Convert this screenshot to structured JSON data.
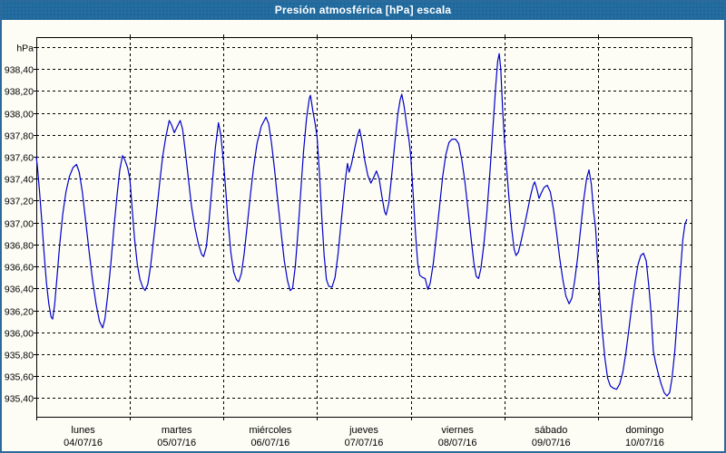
{
  "window": {
    "title": "Presión atmosférica [hPa] escala",
    "title_bar_color": "#20699d",
    "border_color": "#2b6b9b",
    "background_color": "#fdfdf6"
  },
  "chart_data": {
    "type": "line",
    "title": "Presión atmosférica [hPa] escala",
    "ylabel": "hPa",
    "unit_label": "hPa",
    "grid": "dashed",
    "legend": "none",
    "line_color": "#0000c8",
    "grid_color": "#000000",
    "ylim": [
      935.23,
      938.69
    ],
    "x_total_hours": 168,
    "y_gridline_values": [
      938.6,
      938.4,
      938.2,
      938.0,
      937.8,
      937.6,
      937.4,
      937.2,
      937.0,
      936.8,
      936.6,
      936.4,
      936.2,
      936.0,
      935.8,
      935.6,
      935.4
    ],
    "y_gridline_labels": [
      "hPa",
      "938,40",
      "938,20",
      "938,00",
      "937,80",
      "937,60",
      "937,40",
      "937,20",
      "937,00",
      "936,80",
      "936,60",
      "936,40",
      "936,20",
      "936,00",
      "935,80",
      "935,60",
      "935,40"
    ],
    "days": [
      {
        "name": "lunes",
        "date": "04/07/16"
      },
      {
        "name": "martes",
        "date": "05/07/16"
      },
      {
        "name": "miércoles",
        "date": "06/07/16"
      },
      {
        "name": "jueves",
        "date": "07/07/16"
      },
      {
        "name": "viernes",
        "date": "08/07/16"
      },
      {
        "name": "sábado",
        "date": "09/07/16"
      },
      {
        "name": "domingo",
        "date": "10/07/16"
      }
    ],
    "series": [
      {
        "name": "Presión atmosférica [hPa]",
        "color": "#0000c8",
        "points": [
          [
            0,
            937.6
          ],
          [
            0.3,
            937.5
          ],
          [
            0.8,
            937.3
          ],
          [
            1.4,
            937.02
          ],
          [
            2,
            936.72
          ],
          [
            2.6,
            936.45
          ],
          [
            3.2,
            936.26
          ],
          [
            3.8,
            936.14
          ],
          [
            4.2,
            936.12
          ],
          [
            4.7,
            936.25
          ],
          [
            5.3,
            936.5
          ],
          [
            6,
            936.8
          ],
          [
            6.8,
            937.08
          ],
          [
            7.6,
            937.28
          ],
          [
            8.5,
            937.42
          ],
          [
            9.4,
            937.5
          ],
          [
            10.3,
            937.53
          ],
          [
            11,
            937.46
          ],
          [
            11.8,
            937.28
          ],
          [
            12.6,
            937.03
          ],
          [
            13.5,
            936.75
          ],
          [
            14.4,
            936.48
          ],
          [
            15.3,
            936.26
          ],
          [
            16.2,
            936.1
          ],
          [
            17,
            936.04
          ],
          [
            17.6,
            936.12
          ],
          [
            18.3,
            936.33
          ],
          [
            19.1,
            936.62
          ],
          [
            19.9,
            936.95
          ],
          [
            20.7,
            937.25
          ],
          [
            21.4,
            937.48
          ],
          [
            22.1,
            937.61
          ],
          [
            22.7,
            937.57
          ],
          [
            23.4,
            937.5
          ],
          [
            24,
            937.4
          ],
          [
            24.6,
            937.12
          ],
          [
            25.2,
            936.85
          ],
          [
            25.9,
            936.62
          ],
          [
            26.6,
            936.48
          ],
          [
            27.3,
            936.41
          ],
          [
            27.9,
            936.38
          ],
          [
            28.6,
            936.44
          ],
          [
            29.3,
            936.6
          ],
          [
            30,
            936.82
          ],
          [
            30.8,
            937.08
          ],
          [
            31.6,
            937.35
          ],
          [
            32.4,
            937.6
          ],
          [
            33.2,
            937.78
          ],
          [
            34.1,
            937.93
          ],
          [
            34.7,
            937.89
          ],
          [
            35.4,
            937.82
          ],
          [
            36.2,
            937.88
          ],
          [
            36.9,
            937.93
          ],
          [
            37.5,
            937.85
          ],
          [
            38.2,
            937.65
          ],
          [
            39,
            937.4
          ],
          [
            39.8,
            937.15
          ],
          [
            40.7,
            936.95
          ],
          [
            41.6,
            936.8
          ],
          [
            42.4,
            936.71
          ],
          [
            42.9,
            936.69
          ],
          [
            43.6,
            936.78
          ],
          [
            44.3,
            937.02
          ],
          [
            45.1,
            937.35
          ],
          [
            45.9,
            937.68
          ],
          [
            46.7,
            937.91
          ],
          [
            47.3,
            937.8
          ],
          [
            48,
            937.55
          ],
          [
            48.6,
            937.28
          ],
          [
            49.2,
            937
          ],
          [
            49.9,
            936.72
          ],
          [
            50.6,
            936.55
          ],
          [
            51.3,
            936.48
          ],
          [
            51.9,
            936.46
          ],
          [
            52.6,
            936.54
          ],
          [
            53.3,
            936.72
          ],
          [
            54.1,
            936.98
          ],
          [
            54.9,
            937.25
          ],
          [
            55.7,
            937.5
          ],
          [
            56.6,
            937.72
          ],
          [
            57.7,
            937.88
          ],
          [
            58.9,
            937.96
          ],
          [
            59.6,
            937.9
          ],
          [
            60.3,
            937.73
          ],
          [
            61.1,
            937.48
          ],
          [
            61.9,
            937.2
          ],
          [
            62.8,
            936.9
          ],
          [
            63.6,
            936.65
          ],
          [
            64.4,
            936.47
          ],
          [
            65.1,
            936.38
          ],
          [
            65.7,
            936.4
          ],
          [
            66.4,
            936.6
          ],
          [
            67.1,
            936.92
          ],
          [
            67.8,
            937.28
          ],
          [
            68.5,
            937.64
          ],
          [
            69.3,
            937.95
          ],
          [
            70,
            938.13
          ],
          [
            70.3,
            938.16
          ],
          [
            70.9,
            938.02
          ],
          [
            71.5,
            937.9
          ],
          [
            72,
            937.78
          ],
          [
            72.6,
            937.45
          ],
          [
            73.2,
            937.05
          ],
          [
            73.8,
            936.7
          ],
          [
            74.4,
            936.48
          ],
          [
            75,
            936.42
          ],
          [
            75.8,
            936.41
          ],
          [
            76.6,
            936.5
          ],
          [
            77.4,
            936.72
          ],
          [
            78.2,
            937.02
          ],
          [
            79,
            937.3
          ],
          [
            79.4,
            937.43
          ],
          [
            79.8,
            937.54
          ],
          [
            80.2,
            937.46
          ],
          [
            80.8,
            937.53
          ],
          [
            81.6,
            937.67
          ],
          [
            82.4,
            937.8
          ],
          [
            82.9,
            937.85
          ],
          [
            83.5,
            937.74
          ],
          [
            84.2,
            937.57
          ],
          [
            85,
            937.43
          ],
          [
            85.8,
            937.36
          ],
          [
            86.5,
            937.41
          ],
          [
            87.2,
            937.47
          ],
          [
            87.9,
            937.4
          ],
          [
            88.6,
            937.24
          ],
          [
            89.3,
            937.1
          ],
          [
            89.7,
            937.07
          ],
          [
            90.4,
            937.18
          ],
          [
            91.1,
            937.42
          ],
          [
            91.9,
            937.72
          ],
          [
            92.7,
            937.99
          ],
          [
            93.3,
            938.12
          ],
          [
            93.7,
            938.17
          ],
          [
            94.3,
            938.06
          ],
          [
            95,
            937.88
          ],
          [
            95.6,
            937.74
          ],
          [
            96,
            937.61
          ],
          [
            96.6,
            937.28
          ],
          [
            97.2,
            936.92
          ],
          [
            97.8,
            936.63
          ],
          [
            98.3,
            936.52
          ],
          [
            99,
            936.5
          ],
          [
            99.7,
            936.49
          ],
          [
            100.4,
            936.39
          ],
          [
            101,
            936.45
          ],
          [
            101.8,
            936.63
          ],
          [
            102.6,
            936.88
          ],
          [
            103.4,
            937.15
          ],
          [
            104.2,
            937.42
          ],
          [
            105,
            937.62
          ],
          [
            105.8,
            937.73
          ],
          [
            106.6,
            937.76
          ],
          [
            107.5,
            937.76
          ],
          [
            108.3,
            937.72
          ],
          [
            109.1,
            937.57
          ],
          [
            109.9,
            937.37
          ],
          [
            110.7,
            937.12
          ],
          [
            111.5,
            936.85
          ],
          [
            112.2,
            936.63
          ],
          [
            112.8,
            936.51
          ],
          [
            113.4,
            936.49
          ],
          [
            114,
            936.58
          ],
          [
            114.7,
            936.78
          ],
          [
            115.5,
            937.08
          ],
          [
            116.3,
            937.45
          ],
          [
            117.1,
            937.88
          ],
          [
            117.8,
            938.25
          ],
          [
            118.3,
            938.47
          ],
          [
            118.7,
            938.54
          ],
          [
            119.1,
            938.4
          ],
          [
            119.6,
            938.01
          ],
          [
            120.1,
            937.72
          ],
          [
            120.7,
            937.45
          ],
          [
            121.3,
            937.18
          ],
          [
            121.9,
            936.94
          ],
          [
            122.5,
            936.76
          ],
          [
            123,
            936.7
          ],
          [
            123.6,
            936.73
          ],
          [
            124.3,
            936.83
          ],
          [
            125.1,
            936.96
          ],
          [
            125.9,
            937.1
          ],
          [
            126.7,
            937.24
          ],
          [
            127.4,
            937.34
          ],
          [
            127.8,
            937.37
          ],
          [
            128.3,
            937.31
          ],
          [
            128.9,
            937.22
          ],
          [
            129.5,
            937.27
          ],
          [
            130.2,
            937.32
          ],
          [
            131,
            937.34
          ],
          [
            131.8,
            937.28
          ],
          [
            132.6,
            937.12
          ],
          [
            133.4,
            936.91
          ],
          [
            134.2,
            936.68
          ],
          [
            135,
            936.48
          ],
          [
            135.8,
            936.33
          ],
          [
            136.6,
            936.26
          ],
          [
            137.3,
            936.31
          ],
          [
            138,
            936.46
          ],
          [
            138.8,
            936.68
          ],
          [
            139.6,
            936.95
          ],
          [
            140.4,
            937.22
          ],
          [
            141.1,
            937.4
          ],
          [
            141.7,
            937.48
          ],
          [
            142.3,
            937.35
          ],
          [
            142.9,
            937.1
          ],
          [
            143.4,
            936.95
          ],
          [
            144,
            936.6
          ],
          [
            144.5,
            936.3
          ],
          [
            145.1,
            936.02
          ],
          [
            145.8,
            935.76
          ],
          [
            146.5,
            935.58
          ],
          [
            147.2,
            935.51
          ],
          [
            148,
            935.49
          ],
          [
            148.8,
            935.48
          ],
          [
            149.6,
            935.53
          ],
          [
            150.4,
            935.64
          ],
          [
            151.2,
            935.82
          ],
          [
            152,
            936.04
          ],
          [
            152.8,
            936.27
          ],
          [
            153.6,
            936.47
          ],
          [
            154.3,
            936.62
          ],
          [
            155,
            936.7
          ],
          [
            155.7,
            936.72
          ],
          [
            156.4,
            936.65
          ],
          [
            157.1,
            936.4
          ],
          [
            157.7,
            936.15
          ],
          [
            158.2,
            935.83
          ],
          [
            158.8,
            935.72
          ],
          [
            159.5,
            935.62
          ],
          [
            160.2,
            935.53
          ],
          [
            161,
            935.45
          ],
          [
            161.7,
            935.42
          ],
          [
            162.4,
            935.45
          ],
          [
            163,
            935.58
          ],
          [
            163.7,
            935.82
          ],
          [
            164.4,
            936.15
          ],
          [
            165.1,
            936.52
          ],
          [
            165.8,
            936.85
          ],
          [
            166.3,
            936.98
          ],
          [
            166.8,
            937.03
          ]
        ]
      }
    ]
  }
}
